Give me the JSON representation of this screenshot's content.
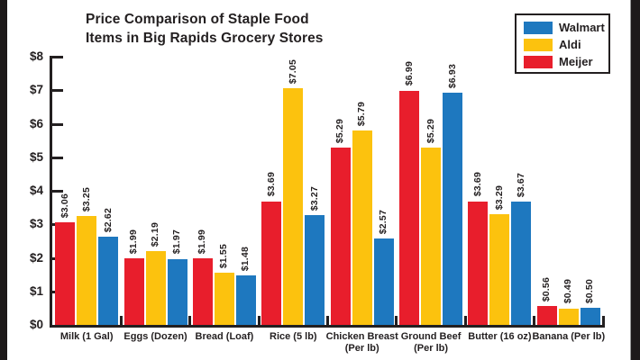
{
  "window": {
    "background": "#ffffff",
    "letterbox_color": "#1d191a",
    "text_color": "#231f20"
  },
  "chart_data": {
    "type": "bar",
    "title": "Price Comparison of Staple Food Items in Big Rapids Grocery Stores",
    "title_lines": [
      "Price Comparison of Staple Food",
      "Items in Big Rapids Grocery Stores"
    ],
    "xlabel": "",
    "ylabel": "",
    "ylim": [
      0,
      8
    ],
    "y_tick_labels": [
      "$0",
      "$1",
      "$2",
      "$3",
      "$4",
      "$5",
      "$6",
      "$7",
      "$8"
    ],
    "grid": false,
    "legend_position": "top-right",
    "legend": [
      {
        "label": "Walmart",
        "color": "#1e78bf"
      },
      {
        "label": "Aldi",
        "color": "#fcc20e"
      },
      {
        "label": "Meijer",
        "color": "#e81e2c"
      }
    ],
    "categories": [
      "Milk (1 Gal)",
      "Eggs (Dozen)",
      "Bread (Loaf)",
      "Rice (5 lb)",
      "Chicken Breast (Per lb)",
      "Ground Beef (Per lb)",
      "Butter (16 oz)",
      "Banana (Per lb)"
    ],
    "category_label_lines": [
      [
        "Milk (1 Gal)"
      ],
      [
        "Eggs (Dozen)"
      ],
      [
        "Bread (Loaf)"
      ],
      [
        "Rice (5 lb)"
      ],
      [
        "Chicken Breast",
        "(Per lb)"
      ],
      [
        "Ground Beef",
        "(Per lb)"
      ],
      [
        "Butter (16 oz)"
      ],
      [
        "Banana (Per lb)"
      ]
    ],
    "bar_draw_order": [
      "Meijer",
      "Aldi",
      "Walmart"
    ],
    "series": [
      {
        "name": "Meijer",
        "color": "#e81e2c",
        "values": [
          3.06,
          1.99,
          1.99,
          3.69,
          5.29,
          6.99,
          3.69,
          0.56
        ],
        "labels": [
          "$3.06",
          "$1.99",
          "$1.99",
          "$3.69",
          "$5.29",
          "$6.99",
          "$3.69",
          "$0.56"
        ]
      },
      {
        "name": "Aldi",
        "color": "#fcc20e",
        "values": [
          3.25,
          2.19,
          1.55,
          7.05,
          5.79,
          5.29,
          3.29,
          0.49
        ],
        "labels": [
          "$3.25",
          "$2.19",
          "$1.55",
          "$7.05",
          "$5.79",
          "$5.29",
          "$3.29",
          "$0.49"
        ]
      },
      {
        "name": "Walmart",
        "color": "#1e78bf",
        "values": [
          2.62,
          1.97,
          1.48,
          3.27,
          2.57,
          6.93,
          3.67,
          0.5
        ],
        "labels": [
          "$2.62",
          "$1.97",
          "$1.48",
          "$3.27",
          "$2.57",
          "$6.93",
          "$3.67",
          "$0.50"
        ]
      }
    ]
  }
}
